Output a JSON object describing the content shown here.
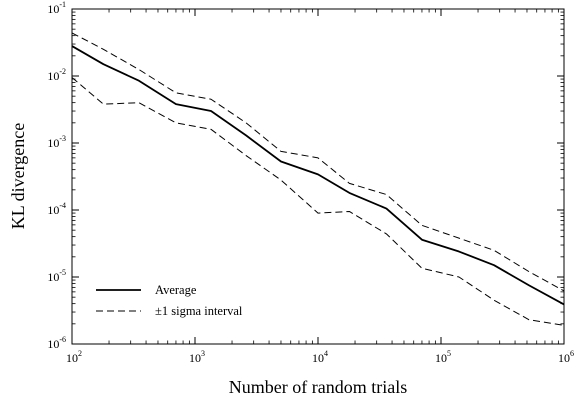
{
  "chart_data": {
    "type": "line",
    "title": "",
    "xlabel": "Number of random trials",
    "ylabel": "KL divergence",
    "xscale": "log",
    "yscale": "log",
    "xlim": [
      100,
      1000000
    ],
    "ylim": [
      1e-06,
      0.1
    ],
    "grid": false,
    "legend_position": "bottom-left",
    "x_ticks": [
      {
        "base": "10",
        "exp": "2"
      },
      {
        "base": "10",
        "exp": "3"
      },
      {
        "base": "10",
        "exp": "4"
      },
      {
        "base": "10",
        "exp": "5"
      },
      {
        "base": "10",
        "exp": "6"
      }
    ],
    "y_ticks": [
      {
        "base": "10",
        "exp": "-6"
      },
      {
        "base": "10",
        "exp": "-5"
      },
      {
        "base": "10",
        "exp": "-4"
      },
      {
        "base": "10",
        "exp": "-3"
      },
      {
        "base": "10",
        "exp": "-2"
      },
      {
        "base": "10",
        "exp": "-1"
      }
    ],
    "x": [
      100,
      180,
      350,
      700,
      1350,
      2600,
      5000,
      10000,
      18000,
      36000,
      70000,
      140000,
      270000,
      520000,
      1000000
    ],
    "series": [
      {
        "name": "Average",
        "style": "solid",
        "values": [
          0.028,
          0.015,
          0.0085,
          0.0038,
          0.003,
          0.0013,
          0.00053,
          0.00034,
          0.00018,
          0.000105,
          3.6e-05,
          2.4e-05,
          1.5e-05,
          7.5e-06,
          3.9e-06
        ]
      },
      {
        "name": "±1 sigma interval",
        "style": "dashed",
        "values": [
          0.044,
          0.025,
          0.0125,
          0.0056,
          0.0045,
          0.002,
          0.00075,
          0.0006,
          0.00025,
          0.00017,
          5.9e-05,
          3.8e-05,
          2.5e-05,
          1.2e-05,
          6.2e-06
        ]
      },
      {
        "name": "",
        "style": "dashed",
        "values": [
          0.0095,
          0.0038,
          0.004,
          0.002,
          0.0016,
          0.00065,
          0.00028,
          9e-05,
          9.5e-05,
          4.4e-05,
          1.35e-05,
          1e-05,
          4.5e-06,
          2.3e-06,
          1.9e-06
        ]
      }
    ],
    "legend": [
      {
        "label": "Average",
        "style": "solid"
      },
      {
        "label": "±1 sigma interval",
        "style": "dashed"
      }
    ]
  }
}
